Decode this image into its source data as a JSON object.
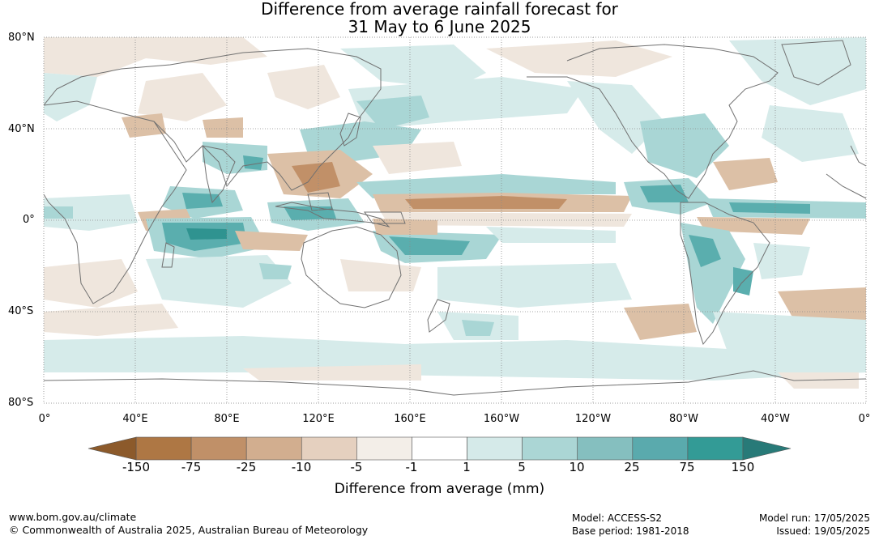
{
  "title": {
    "line1": "Difference from average rainfall forecast for",
    "line2": "31 May to 6 June 2025"
  },
  "map": {
    "lat_labels": [
      "80°N",
      "40°N",
      "0°",
      "40°S",
      "80°S"
    ],
    "lon_labels": [
      "0°",
      "40°E",
      "80°E",
      "120°E",
      "160°E",
      "160°W",
      "120°W",
      "80°W",
      "40°W",
      "0°"
    ],
    "colors": {
      "dry_extreme": "#8c5a2b",
      "dry_strong": "#c19068",
      "dry_moderate": "#dcc0a6",
      "dry_light": "#efe6dd",
      "wet_light": "#d6ebea",
      "wet_moderate": "#a9d6d5",
      "wet_strong": "#5aaeae",
      "wet_extreme": "#2f9390",
      "coastline": "#707070",
      "gridline": "#8a8a8a"
    }
  },
  "colorbar": {
    "tick_labels": [
      "-150",
      "-75",
      "-25",
      "-10",
      "-5",
      "-1",
      "1",
      "5",
      "10",
      "25",
      "75",
      "150"
    ],
    "colors": [
      "#ae7744",
      "#c09068",
      "#d2ae8f",
      "#e5d0bf",
      "#f3eee8",
      "#ffffff",
      "#d5eae9",
      "#abd6d5",
      "#85bfbf",
      "#5aaaad",
      "#339b96"
    ],
    "extend_low": "#8c5a2b",
    "extend_high": "#287a78",
    "title": "Difference from average (mm)"
  },
  "footer": {
    "website": "www.bom.gov.au/climate",
    "copyright": "© Commonwealth of Australia 2025, Australian Bureau of Meteorology",
    "model": "Model: ACCESS-S2",
    "base_period": "Base period: 1981-2018",
    "model_run": "Model run: 17/05/2025",
    "issued": "Issued: 19/05/2025"
  }
}
